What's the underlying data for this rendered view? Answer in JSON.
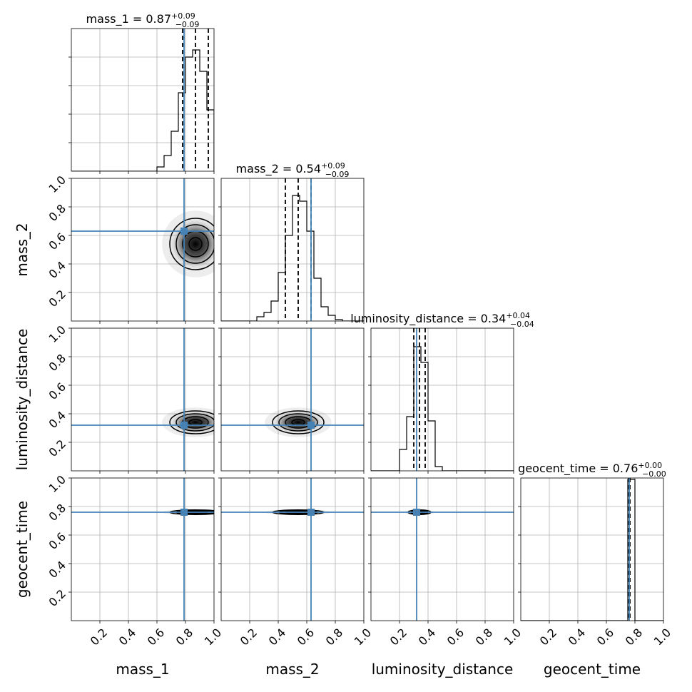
{
  "chart_data": {
    "type": "corner",
    "parameters": [
      "mass_1",
      "mass_2",
      "luminosity_distance",
      "geocent_time"
    ],
    "axis_labels": [
      "mass_1",
      "mass_2",
      "luminosity_distance",
      "geocent_time"
    ],
    "range": [
      0,
      1
    ],
    "ticks": [
      0.2,
      0.4,
      0.6,
      0.8,
      1.0
    ],
    "tick_labels": [
      "0.2",
      "0.4",
      "0.6",
      "0.8",
      "1.0"
    ],
    "grid": true,
    "colors": {
      "truth": "#4682b4",
      "hist": "#000000",
      "quantile": "#000000"
    },
    "truths": [
      0.79,
      0.63,
      0.32,
      0.76
    ],
    "titles": [
      {
        "param": "mass_1",
        "label": "mass_1 = 0.87",
        "plus": "+0.09",
        "minus": "−0.09"
      },
      {
        "param": "mass_2",
        "label": "mass_2 = 0.54",
        "plus": "+0.09",
        "minus": "−0.09"
      },
      {
        "param": "luminosity_distance",
        "label": "luminosity_distance = 0.34",
        "plus": "+0.04",
        "minus": "−0.04"
      },
      {
        "param": "geocent_time",
        "label": "geocent_time = 0.76",
        "plus": "+0.00",
        "minus": "−0.00"
      }
    ],
    "quantiles": [
      [
        0.78,
        0.87,
        0.96
      ],
      [
        0.45,
        0.54,
        0.63
      ],
      [
        0.3,
        0.34,
        0.38
      ],
      [
        0.755,
        0.76,
        0.765
      ]
    ],
    "histograms": [
      {
        "bin_edges": [
          0.55,
          0.6,
          0.65,
          0.7,
          0.75,
          0.8,
          0.85,
          0.9,
          0.95,
          1.0
        ],
        "counts": [
          0.0,
          0.03,
          0.11,
          0.28,
          0.55,
          0.8,
          0.85,
          0.7,
          0.43
        ]
      },
      {
        "bin_edges": [
          0.25,
          0.3,
          0.35,
          0.4,
          0.45,
          0.5,
          0.55,
          0.6,
          0.65,
          0.7,
          0.75,
          0.8,
          0.85
        ],
        "counts": [
          0.03,
          0.06,
          0.14,
          0.34,
          0.6,
          0.88,
          0.84,
          0.63,
          0.3,
          0.1,
          0.04,
          0.01
        ]
      },
      {
        "bin_edges": [
          0.2,
          0.25,
          0.3,
          0.35,
          0.4,
          0.45,
          0.5
        ],
        "counts": [
          0.15,
          0.38,
          0.87,
          0.76,
          0.35,
          0.03
        ]
      },
      {
        "bin_edges": [
          0.7,
          0.75,
          0.8,
          0.85
        ],
        "counts": [
          0.0,
          0.99,
          0.0
        ]
      }
    ],
    "contours_2d": [
      {
        "row": 1,
        "col": 0,
        "center": [
          0.87,
          0.54
        ],
        "width": [
          0.09,
          0.09
        ]
      },
      {
        "row": 2,
        "col": 0,
        "center": [
          0.87,
          0.34
        ],
        "width": [
          0.09,
          0.04
        ]
      },
      {
        "row": 2,
        "col": 1,
        "center": [
          0.54,
          0.34
        ],
        "width": [
          0.09,
          0.04
        ]
      },
      {
        "row": 3,
        "col": 0,
        "center": [
          0.87,
          0.76
        ],
        "width": [
          0.09,
          0.008
        ]
      },
      {
        "row": 3,
        "col": 1,
        "center": [
          0.54,
          0.76
        ],
        "width": [
          0.09,
          0.008
        ]
      },
      {
        "row": 3,
        "col": 2,
        "center": [
          0.34,
          0.76
        ],
        "width": [
          0.04,
          0.008
        ]
      }
    ]
  }
}
